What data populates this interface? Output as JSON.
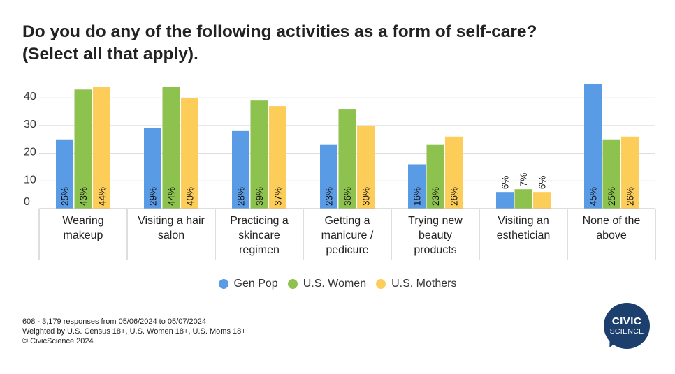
{
  "title_line1": "Do you do any of the following activities as a form of self-care?",
  "title_line2": "(Select all that apply).",
  "colors": {
    "gen_pop": "#5a9be6",
    "us_women": "#8dc24f",
    "us_mothers": "#fdcd5a",
    "grid": "#d9d9d9",
    "logo": "#1d3f6e"
  },
  "chart_data": {
    "type": "bar",
    "categories": [
      [
        "Wearing",
        "makeup"
      ],
      [
        "Visiting a hair",
        "salon"
      ],
      [
        "Practicing a",
        "skincare",
        "regimen"
      ],
      [
        "Getting a",
        "manicure /",
        "pedicure"
      ],
      [
        "Trying new",
        "beauty",
        "products"
      ],
      [
        "Visiting an",
        "esthetician"
      ],
      [
        "None of the",
        "above"
      ]
    ],
    "series": [
      {
        "name": "Gen Pop",
        "values": [
          25,
          29,
          28,
          23,
          16,
          6,
          45
        ],
        "labels": [
          "25%",
          "29%",
          "28%",
          "23%",
          "16%",
          "6%",
          "45%"
        ]
      },
      {
        "name": "U.S. Women",
        "values": [
          43,
          44,
          39,
          36,
          23,
          7,
          25
        ],
        "labels": [
          "43%",
          "44%",
          "39%",
          "36%",
          "23%",
          "7%",
          "25%"
        ]
      },
      {
        "name": "U.S. Mothers",
        "values": [
          44,
          40,
          37,
          30,
          26,
          6,
          26
        ],
        "labels": [
          "44%",
          "40%",
          "37%",
          "30%",
          "26%",
          "6%",
          "26%"
        ]
      }
    ],
    "y_ticks": [
      "0",
      "10",
      "20",
      "30",
      "40"
    ],
    "ylim": [
      0,
      45
    ],
    "grid": true,
    "legend_position": "bottom"
  },
  "legend": {
    "gen_pop": "Gen Pop",
    "us_women": "U.S. Women",
    "us_mothers": "U.S. Mothers"
  },
  "footer": {
    "line1": "608 - 3,179 responses from 05/06/2024 to 05/07/2024",
    "line2": "Weighted by U.S. Census 18+, U.S. Women 18+, U.S. Moms 18+",
    "line3": "© CivicScience 2024"
  },
  "logo": {
    "line1": "CIVIC",
    "line2": "SCIENCE"
  }
}
